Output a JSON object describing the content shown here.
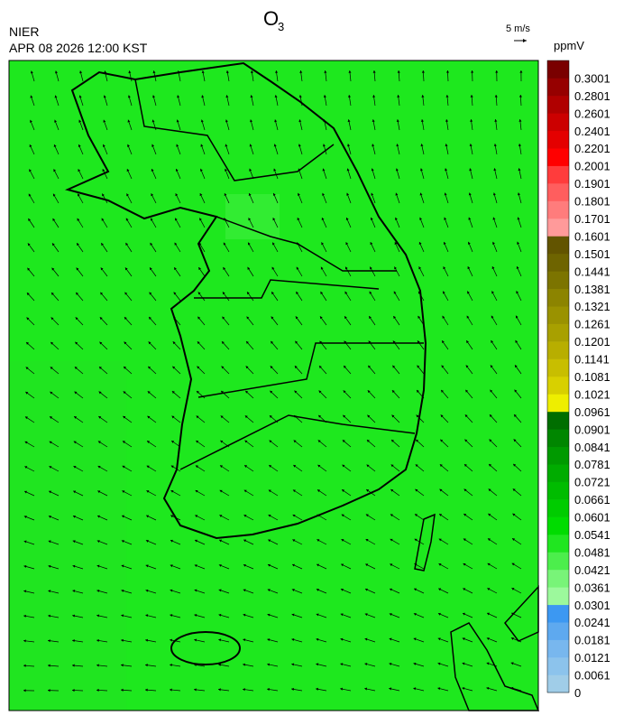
{
  "title": {
    "text": "O",
    "subscript": "3"
  },
  "agency": "NIER",
  "timestamp": "APR 08 2026 12:00 KST",
  "wind_scale": "5 m/s",
  "colorbar": {
    "unit": "ppmV",
    "labels": [
      "0",
      "0.0061",
      "0.0121",
      "0.0181",
      "0.0241",
      "0.0301",
      "0.0361",
      "0.0421",
      "0.0481",
      "0.0541",
      "0.0601",
      "0.0661",
      "0.0721",
      "0.0781",
      "0.0841",
      "0.0901",
      "0.0961",
      "0.1021",
      "0.1081",
      "0.1141",
      "0.1201",
      "0.1261",
      "0.1321",
      "0.1381",
      "0.1441",
      "0.1501",
      "0.1601",
      "0.1701",
      "0.1801",
      "0.1901",
      "0.2001",
      "0.2201",
      "0.2401",
      "0.2601",
      "0.2801",
      "0.3001"
    ],
    "colors": [
      "#a0cde8",
      "#8cc3ec",
      "#78b7ee",
      "#5ea9ef",
      "#3c98f2",
      "#9cf99c",
      "#78f478",
      "#4cee4c",
      "#20e620",
      "#00dc00",
      "#00cc00",
      "#00bc00",
      "#00ac00",
      "#009a00",
      "#008600",
      "#006e00",
      "#eeee00",
      "#d8d000",
      "#c8be00",
      "#b8ae00",
      "#a8a000",
      "#9a9200",
      "#8c8400",
      "#7c7400",
      "#6e6400",
      "#625400",
      "#ff9a9a",
      "#ff7c7c",
      "#ff5e5e",
      "#ff3c3c",
      "#ff0000",
      "#e40000",
      "#cc0000",
      "#b00000",
      "#960000",
      "#7a0000"
    ]
  }
}
